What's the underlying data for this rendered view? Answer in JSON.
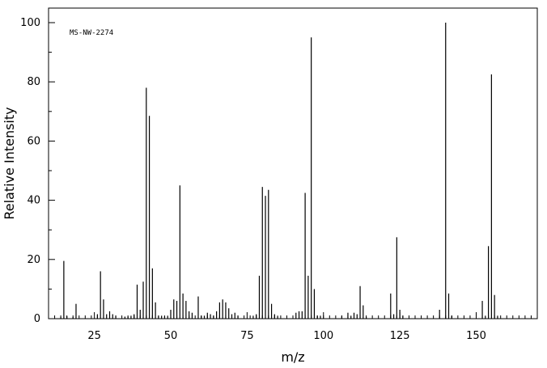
{
  "chart_data": {
    "type": "bar",
    "title": "",
    "annotation": "MS-NW-2274",
    "xlabel": "m/z",
    "ylabel": "Relative Intensity",
    "xlim": [
      10,
      170
    ],
    "ylim": [
      0,
      100
    ],
    "x_ticks": [
      25,
      50,
      75,
      100,
      125,
      150
    ],
    "y_ticks": [
      0,
      20,
      40,
      60,
      80,
      100
    ],
    "grid": false,
    "series": [
      {
        "peaks": [
          [
            14,
            0.5
          ],
          [
            15,
            19.5
          ],
          [
            16,
            0.8
          ],
          [
            18,
            0.5
          ],
          [
            19,
            5
          ],
          [
            26,
            1.5
          ],
          [
            27,
            16
          ],
          [
            28,
            6.5
          ],
          [
            29,
            1.5
          ],
          [
            30,
            2.5
          ],
          [
            31,
            1.5
          ],
          [
            32,
            1
          ],
          [
            35,
            0.7
          ],
          [
            36,
            0.7
          ],
          [
            37,
            1
          ],
          [
            38,
            1.5
          ],
          [
            39,
            11.5
          ],
          [
            40,
            3
          ],
          [
            41,
            12.5
          ],
          [
            42,
            78
          ],
          [
            43,
            68.5
          ],
          [
            44,
            17
          ],
          [
            45,
            5.5
          ],
          [
            46,
            1
          ],
          [
            47,
            1
          ],
          [
            48,
            0.8
          ],
          [
            49,
            1
          ],
          [
            50,
            3
          ],
          [
            51,
            6.5
          ],
          [
            52,
            6
          ],
          [
            53,
            45
          ],
          [
            54,
            8.5
          ],
          [
            55,
            6
          ],
          [
            56,
            2.5
          ],
          [
            57,
            2
          ],
          [
            59,
            7.5
          ],
          [
            60,
            1
          ],
          [
            61,
            1
          ],
          [
            62,
            2
          ],
          [
            63,
            1.5
          ],
          [
            64,
            1
          ],
          [
            65,
            2.5
          ],
          [
            66,
            5.5
          ],
          [
            67,
            6.5
          ],
          [
            68,
            5.5
          ],
          [
            69,
            3.5
          ],
          [
            70,
            1.5
          ],
          [
            71,
            2
          ],
          [
            72,
            1
          ],
          [
            77,
            1
          ],
          [
            78,
            1.5
          ],
          [
            79,
            14.5
          ],
          [
            80,
            44.5
          ],
          [
            81,
            41.5
          ],
          [
            82,
            43.5
          ],
          [
            83,
            5
          ],
          [
            84,
            1.5
          ],
          [
            85,
            1
          ],
          [
            91,
            2
          ],
          [
            92,
            2.5
          ],
          [
            93,
            2.5
          ],
          [
            94,
            42.5
          ],
          [
            95,
            14.5
          ],
          [
            96,
            95
          ],
          [
            97,
            10
          ],
          [
            98,
            1
          ],
          [
            99,
            1
          ],
          [
            106,
            1
          ],
          [
            108,
            2
          ],
          [
            109,
            1
          ],
          [
            110,
            2
          ],
          [
            111,
            1.5
          ],
          [
            112,
            11
          ],
          [
            113,
            4.5
          ],
          [
            114,
            0.5
          ],
          [
            122,
            8.5
          ],
          [
            123,
            1.5
          ],
          [
            124,
            27.5
          ],
          [
            125,
            3
          ],
          [
            126,
            1
          ],
          [
            138,
            3
          ],
          [
            140,
            100
          ],
          [
            141,
            8.5
          ],
          [
            142,
            1
          ],
          [
            152,
            6
          ],
          [
            153,
            1
          ],
          [
            154,
            24.5
          ],
          [
            155,
            82.5
          ],
          [
            156,
            8
          ],
          [
            157,
            1
          ]
        ]
      }
    ]
  }
}
